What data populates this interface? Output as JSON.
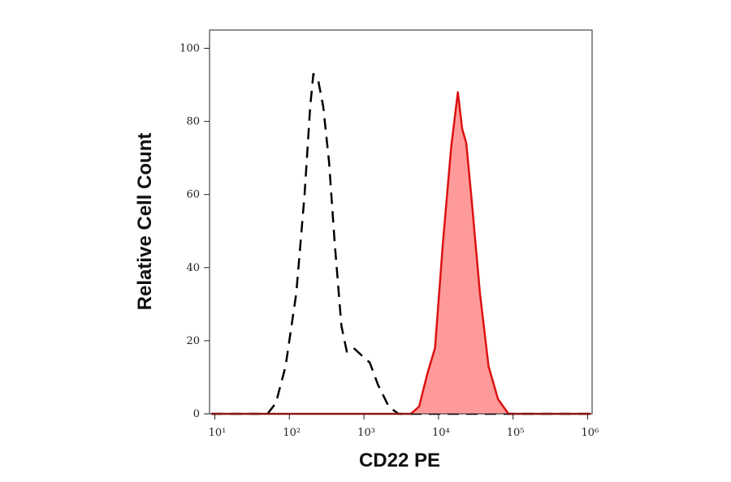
{
  "chart_data": {
    "type": "line",
    "x_label": "CD22 PE",
    "y_label": "Relative Cell Count",
    "xscale": "log",
    "xlim": [
      8.5,
      1150000
    ],
    "xticks": [
      {
        "value": 10,
        "label": "10¹"
      },
      {
        "value": 100,
        "label": "10²"
      },
      {
        "value": 1000,
        "label": "10³"
      },
      {
        "value": 10000,
        "label": "10⁴"
      },
      {
        "value": 100000,
        "label": "10⁵"
      },
      {
        "value": 1000000,
        "label": "10⁶"
      }
    ],
    "ylim": [
      0,
      105
    ],
    "yticks": [
      0,
      20,
      40,
      60,
      80,
      100
    ],
    "series": [
      {
        "color": "#000000",
        "dashed": true,
        "filled": false,
        "x": [
          9,
          51,
          66,
          89,
          124,
          160,
          190,
          210,
          245,
          285,
          340,
          405,
          500,
          590,
          730,
          930,
          1200,
          1540,
          2150,
          2900,
          1100000
        ],
        "values": [
          0,
          0,
          3,
          13,
          33,
          60,
          84,
          93,
          91,
          84,
          69,
          47,
          24,
          17,
          18,
          16,
          14,
          8,
          2,
          0,
          0
        ]
      },
      {
        "color": "#dd1111",
        "fill_color": "#ff9a9a",
        "dashed": false,
        "filled": true,
        "x": [
          9,
          4270,
          5500,
          7100,
          9000,
          11500,
          14800,
          18200,
          20800,
          23600,
          28000,
          36000,
          47000,
          63000,
          87000,
          1100000
        ],
        "values": [
          0,
          0,
          2,
          11,
          18,
          47,
          73,
          88,
          78,
          74,
          58,
          33,
          13,
          4,
          0,
          0
        ]
      }
    ]
  }
}
